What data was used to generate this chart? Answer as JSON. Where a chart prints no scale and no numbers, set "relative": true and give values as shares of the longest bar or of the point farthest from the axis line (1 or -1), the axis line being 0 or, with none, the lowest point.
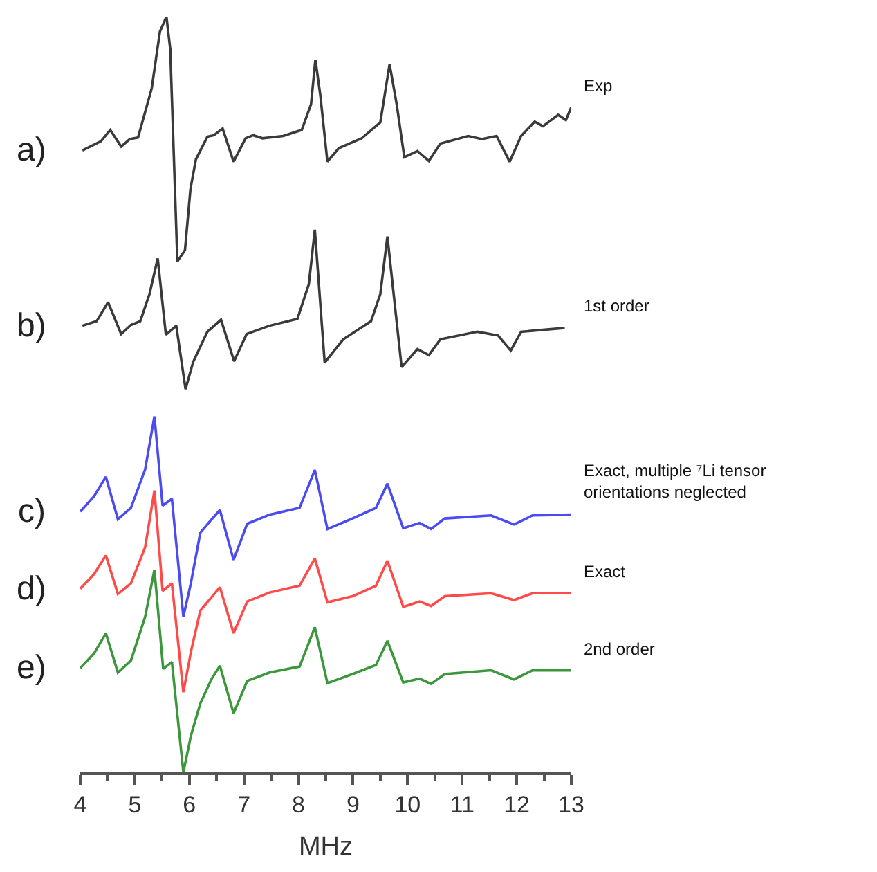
{
  "chart_data": {
    "type": "line",
    "relative": true,
    "xlabel": "MHz",
    "xlim": [
      4,
      13
    ],
    "xticks": [
      4,
      5,
      6,
      7,
      8,
      9,
      10,
      11,
      12,
      13
    ],
    "grid": false,
    "legend": false,
    "annotations": [
      "a)",
      "b)",
      "c)",
      "d)",
      "e)"
    ],
    "series": [
      {
        "name": "Exp",
        "color": "#3a3a3a",
        "x": [
          4.04,
          4.38,
          4.55,
          4.75,
          4.91,
          5.06,
          5.31,
          5.46,
          5.58,
          5.65,
          5.78,
          5.92,
          6.02,
          6.12,
          6.33,
          6.45,
          6.61,
          6.81,
          7.03,
          7.17,
          7.34,
          7.72,
          8.06,
          8.23,
          8.31,
          8.4,
          8.53,
          8.74,
          9.16,
          9.5,
          9.67,
          9.8,
          9.94,
          10.18,
          10.39,
          10.6,
          11.11,
          11.36,
          11.63,
          11.87,
          12.08,
          12.33,
          12.48,
          12.76,
          12.9,
          13.0
        ],
        "values": [
          0.823,
          0.835,
          0.85,
          0.828,
          0.838,
          0.84,
          0.905,
          0.98,
          1.0,
          0.957,
          0.676,
          0.691,
          0.772,
          0.811,
          0.841,
          0.843,
          0.852,
          0.808,
          0.839,
          0.843,
          0.839,
          0.842,
          0.85,
          0.884,
          0.943,
          0.896,
          0.808,
          0.826,
          0.839,
          0.86,
          0.937,
          0.884,
          0.814,
          0.822,
          0.809,
          0.832,
          0.842,
          0.838,
          0.842,
          0.808,
          0.842,
          0.861,
          0.855,
          0.87,
          0.863,
          0.88
        ]
      },
      {
        "name": "1st order",
        "color": "#3a3a3a",
        "x": [
          4.04,
          4.3,
          4.51,
          4.75,
          4.93,
          5.1,
          5.27,
          5.42,
          5.57,
          5.76,
          5.93,
          6.07,
          6.33,
          6.58,
          6.82,
          7.05,
          7.47,
          7.98,
          8.19,
          8.3,
          8.48,
          8.82,
          9.33,
          9.5,
          9.63,
          9.89,
          10.18,
          10.39,
          10.6,
          11.28,
          11.66,
          11.89,
          12.08,
          12.88
        ],
        "values": [
          0.591,
          0.597,
          0.622,
          0.58,
          0.592,
          0.597,
          0.633,
          0.68,
          0.579,
          0.591,
          0.507,
          0.543,
          0.583,
          0.599,
          0.544,
          0.58,
          0.591,
          0.6,
          0.646,
          0.718,
          0.542,
          0.573,
          0.597,
          0.633,
          0.709,
          0.536,
          0.56,
          0.552,
          0.573,
          0.583,
          0.578,
          0.558,
          0.583,
          0.588
        ]
      },
      {
        "name": "Exact, multiple ⁷Li tensor orientations neglected",
        "color": "#4b4bf2",
        "x": [
          4.0,
          4.25,
          4.47,
          4.69,
          4.93,
          5.19,
          5.36,
          5.51,
          5.68,
          5.89,
          6.03,
          6.2,
          6.41,
          6.56,
          6.81,
          7.06,
          7.47,
          8.02,
          8.3,
          8.53,
          8.99,
          9.42,
          9.63,
          9.92,
          10.22,
          10.43,
          10.68,
          11.53,
          11.95,
          12.29,
          13.0
        ],
        "values": [
          0.345,
          0.365,
          0.391,
          0.335,
          0.35,
          0.401,
          0.471,
          0.353,
          0.362,
          0.206,
          0.251,
          0.317,
          0.335,
          0.347,
          0.281,
          0.329,
          0.341,
          0.35,
          0.4,
          0.322,
          0.336,
          0.35,
          0.382,
          0.323,
          0.33,
          0.322,
          0.336,
          0.34,
          0.328,
          0.34,
          0.341
        ]
      },
      {
        "name": "Exact",
        "color": "#ff4a4a",
        "x": [
          4.0,
          4.25,
          4.47,
          4.69,
          4.93,
          5.19,
          5.36,
          5.51,
          5.68,
          5.89,
          6.03,
          6.2,
          6.41,
          6.56,
          6.81,
          7.06,
          7.47,
          8.02,
          8.3,
          8.53,
          8.99,
          9.42,
          9.63,
          9.92,
          10.22,
          10.43,
          10.68,
          11.53,
          11.95,
          12.29,
          13.0
        ],
        "values": [
          0.243,
          0.262,
          0.287,
          0.236,
          0.25,
          0.298,
          0.373,
          0.24,
          0.25,
          0.106,
          0.16,
          0.214,
          0.232,
          0.245,
          0.184,
          0.226,
          0.238,
          0.247,
          0.283,
          0.225,
          0.233,
          0.247,
          0.28,
          0.219,
          0.226,
          0.22,
          0.233,
          0.237,
          0.228,
          0.237,
          0.237
        ]
      },
      {
        "name": "2nd order",
        "color": "#3c963c",
        "x": [
          4.0,
          4.25,
          4.47,
          4.69,
          4.93,
          5.19,
          5.36,
          5.52,
          5.68,
          5.89,
          6.03,
          6.2,
          6.41,
          6.56,
          6.81,
          7.06,
          7.47,
          8.02,
          8.3,
          8.53,
          8.99,
          9.42,
          9.63,
          9.92,
          10.22,
          10.43,
          10.68,
          11.53,
          11.95,
          12.29,
          13.0
        ],
        "values": [
          0.138,
          0.157,
          0.184,
          0.132,
          0.148,
          0.206,
          0.268,
          0.137,
          0.146,
          0.0,
          0.049,
          0.091,
          0.124,
          0.141,
          0.078,
          0.121,
          0.132,
          0.14,
          0.192,
          0.118,
          0.13,
          0.142,
          0.174,
          0.119,
          0.124,
          0.117,
          0.13,
          0.135,
          0.123,
          0.135,
          0.135
        ]
      }
    ]
  }
}
